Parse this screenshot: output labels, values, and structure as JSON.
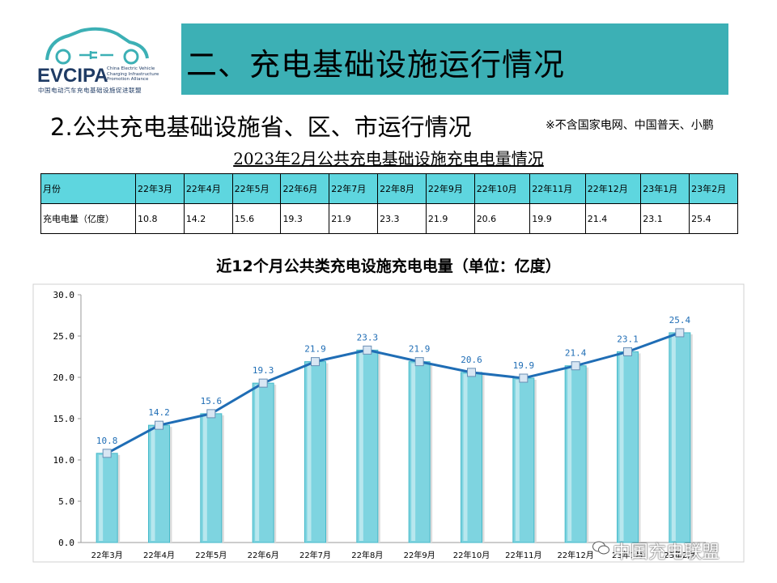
{
  "logo": {
    "brand": "EVCIPA",
    "tagline": "China Electric Vehicle Charging Infrastructure Promotion Alliance",
    "sub_cn": "中国电动汽车充电基础设施促进联盟"
  },
  "header": {
    "title": "二、充电基础设施运行情况"
  },
  "section": {
    "title": "2.公共充电基础设施省、区、市运行情况",
    "note": "※不含国家电网、中国普天、小鹏"
  },
  "table": {
    "title": "2023年2月公共充电基础设施充电电量情况",
    "row_header_month": "月份",
    "row_header_value": "充电电量（亿度）",
    "months": [
      "22年3月",
      "22年4月",
      "22年5月",
      "22年6月",
      "22年7月",
      "22年8月",
      "22年9月",
      "22年10月",
      "22年11月",
      "22年12月",
      "23年1月",
      "23年2月"
    ],
    "values": [
      "10.8",
      "14.2",
      "15.6",
      "19.3",
      "21.9",
      "23.3",
      "21.9",
      "20.6",
      "19.9",
      "21.4",
      "23.1",
      "25.4"
    ]
  },
  "chart_data": {
    "type": "bar",
    "title": "近12个月公共类充电设施充电电量（单位：亿度）",
    "categories": [
      "22年3月",
      "22年4月",
      "22年5月",
      "22年6月",
      "22年7月",
      "22年8月",
      "22年9月",
      "22年10月",
      "22年11月",
      "22年12月",
      "23年1月",
      "23年2月"
    ],
    "values": [
      10.8,
      14.2,
      15.6,
      19.3,
      21.9,
      23.3,
      21.9,
      20.6,
      19.9,
      21.4,
      23.1,
      25.4
    ],
    "overlay": "line",
    "ylim": [
      0,
      30
    ],
    "yticks": [
      "0.0",
      "5.0",
      "10.0",
      "15.0",
      "20.0",
      "25.0",
      "30.0"
    ],
    "data_labels": [
      "10.8",
      "14.2",
      "15.6",
      "19.3",
      "21.9",
      "23.3",
      "21.9",
      "20.6",
      "19.9",
      "21.4",
      "23.1",
      "25.4"
    ],
    "grid": false,
    "colors": {
      "bar": "#7ed4e0",
      "bar_edge": "#46b9c9",
      "line": "#1f6db5",
      "label": "#1f6db5"
    }
  },
  "watermark": {
    "text": "中国充电联盟",
    "icon": "wechat-icon"
  }
}
